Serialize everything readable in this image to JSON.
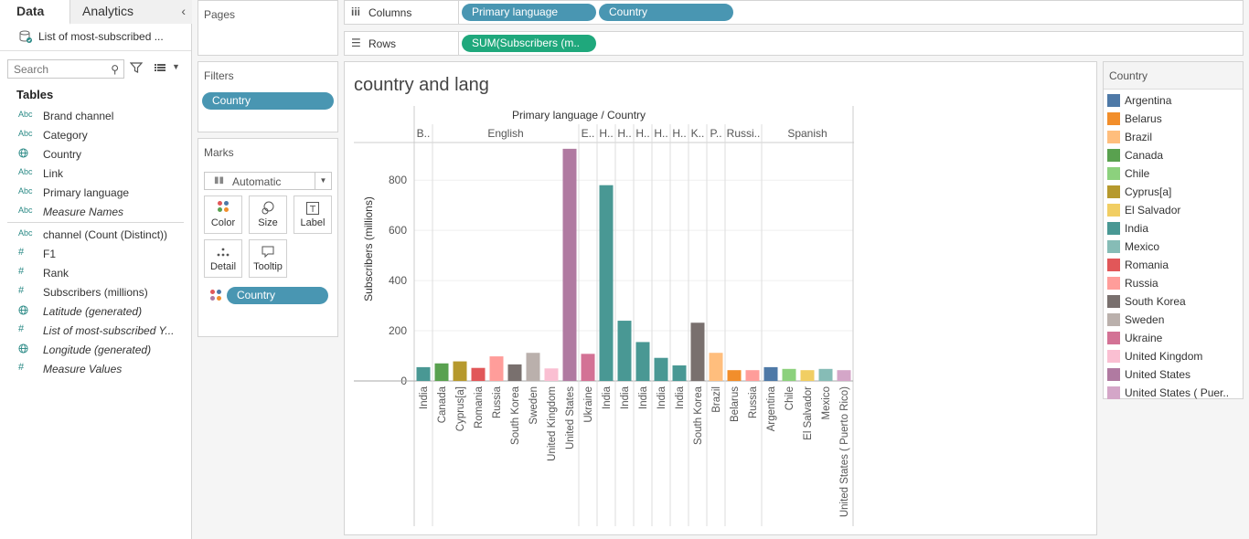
{
  "data_pane": {
    "tabs": {
      "data": "Data",
      "analytics": "Analytics"
    },
    "datasource": "List of most-subscribed ...",
    "search_placeholder": "Search",
    "tables_title": "Tables",
    "fields": [
      {
        "icon": "Abc",
        "name": "Brand channel",
        "italic": false
      },
      {
        "icon": "Abc",
        "name": "Category",
        "italic": false
      },
      {
        "icon": "globe",
        "name": "Country",
        "italic": false
      },
      {
        "icon": "Abc",
        "name": "Link",
        "italic": false
      },
      {
        "icon": "Abc",
        "name": "Primary language",
        "italic": false
      },
      {
        "icon": "Abc",
        "name": "Measure Names",
        "italic": true
      },
      {
        "icon": "Abc",
        "name": "channel (Count (Distinct))",
        "italic": false
      },
      {
        "icon": "#",
        "name": "F1",
        "italic": false
      },
      {
        "icon": "#",
        "name": "Rank",
        "italic": false
      },
      {
        "icon": "#",
        "name": "Subscribers (millions)",
        "italic": false
      },
      {
        "icon": "globe",
        "name": "Latitude (generated)",
        "italic": true
      },
      {
        "icon": "#",
        "name": "List of most-subscribed Y...",
        "italic": true
      },
      {
        "icon": "globe",
        "name": "Longitude (generated)",
        "italic": true
      },
      {
        "icon": "#",
        "name": "Measure Values",
        "italic": true
      }
    ]
  },
  "pages": {
    "title": "Pages"
  },
  "filters": {
    "title": "Filters",
    "pill": "Country"
  },
  "marks": {
    "title": "Marks",
    "type": "Automatic",
    "buttons": {
      "color": "Color",
      "size": "Size",
      "label": "Label",
      "detail": "Detail",
      "tooltip": "Tooltip"
    },
    "color_pill": "Country"
  },
  "columns": {
    "label": "Columns",
    "pills": [
      "Primary language",
      "Country"
    ]
  },
  "rows": {
    "label": "Rows",
    "pills": [
      "SUM(Subscribers (m.."
    ]
  },
  "viz": {
    "title": "country and lang"
  },
  "legend": {
    "title": "Country",
    "items": [
      {
        "name": "Argentina",
        "color": "#4e79a7"
      },
      {
        "name": "Belarus",
        "color": "#f28e2b"
      },
      {
        "name": "Brazil",
        "color": "#ffbe7d"
      },
      {
        "name": "Canada",
        "color": "#59a14f"
      },
      {
        "name": "Chile",
        "color": "#8cd17d"
      },
      {
        "name": "Cyprus[a]",
        "color": "#b6992d"
      },
      {
        "name": "El Salvador",
        "color": "#f1ce63"
      },
      {
        "name": "India",
        "color": "#499894"
      },
      {
        "name": "Mexico",
        "color": "#86bcb6"
      },
      {
        "name": "Romania",
        "color": "#e15759"
      },
      {
        "name": "Russia",
        "color": "#ff9d9a"
      },
      {
        "name": "South Korea",
        "color": "#79706e"
      },
      {
        "name": "Sweden",
        "color": "#bab0ac"
      },
      {
        "name": "Ukraine",
        "color": "#d37295"
      },
      {
        "name": "United Kingdom",
        "color": "#fabfd2"
      },
      {
        "name": "United States",
        "color": "#b07aa1"
      },
      {
        "name": "United States ( Puer..",
        "color": "#d4a6c8"
      }
    ]
  },
  "chart_data": {
    "type": "bar",
    "title": "Primary language / Country",
    "ylabel": "Subscribers (millions)",
    "ylim": [
      0,
      950
    ],
    "yticks": [
      0,
      200,
      400,
      600,
      800
    ],
    "grid": true,
    "groups": [
      {
        "label": "B..",
        "bars": [
          {
            "country": "India",
            "value": 55,
            "color": "#499894"
          }
        ]
      },
      {
        "label": "English",
        "bars": [
          {
            "country": "Canada",
            "value": 70,
            "color": "#59a14f"
          },
          {
            "country": "Cyprus[a]",
            "value": 78,
            "color": "#b6992d"
          },
          {
            "country": "Romania",
            "value": 52,
            "color": "#e15759"
          },
          {
            "country": "Russia",
            "value": 98,
            "color": "#ff9d9a"
          },
          {
            "country": "South Korea",
            "value": 66,
            "color": "#79706e"
          },
          {
            "country": "Sweden",
            "value": 112,
            "color": "#bab0ac"
          },
          {
            "country": "United Kingdom",
            "value": 50,
            "color": "#fabfd2"
          },
          {
            "country": "United States",
            "value": 925,
            "color": "#b07aa1"
          }
        ]
      },
      {
        "label": "E..",
        "bars": [
          {
            "country": "Ukraine",
            "value": 108,
            "color": "#d37295"
          }
        ]
      },
      {
        "label": "H..",
        "bars": [
          {
            "country": "India",
            "value": 780,
            "color": "#499894"
          }
        ]
      },
      {
        "label": "H..",
        "bars": [
          {
            "country": "India",
            "value": 240,
            "color": "#499894"
          }
        ]
      },
      {
        "label": "H..",
        "bars": [
          {
            "country": "India",
            "value": 155,
            "color": "#499894"
          }
        ]
      },
      {
        "label": "H..",
        "bars": [
          {
            "country": "India",
            "value": 92,
            "color": "#499894"
          }
        ]
      },
      {
        "label": "H..",
        "bars": [
          {
            "country": "India",
            "value": 62,
            "color": "#499894"
          }
        ]
      },
      {
        "label": "K..",
        "bars": [
          {
            "country": "South Korea",
            "value": 232,
            "color": "#79706e"
          }
        ]
      },
      {
        "label": "P..",
        "bars": [
          {
            "country": "Brazil",
            "value": 112,
            "color": "#ffbe7d"
          }
        ]
      },
      {
        "label": "Russi..",
        "bars": [
          {
            "country": "Belarus",
            "value": 43,
            "color": "#f28e2b"
          },
          {
            "country": "Russia",
            "value": 43,
            "color": "#ff9d9a"
          }
        ]
      },
      {
        "label": "Spanish",
        "bars": [
          {
            "country": "Argentina",
            "value": 55,
            "color": "#4e79a7"
          },
          {
            "country": "Chile",
            "value": 48,
            "color": "#8cd17d"
          },
          {
            "country": "El Salvador",
            "value": 43,
            "color": "#f1ce63"
          },
          {
            "country": "Mexico",
            "value": 48,
            "color": "#86bcb6"
          },
          {
            "country": "United States ( Puerto Rico)",
            "value": 43,
            "color": "#d4a6c8"
          }
        ]
      }
    ]
  }
}
